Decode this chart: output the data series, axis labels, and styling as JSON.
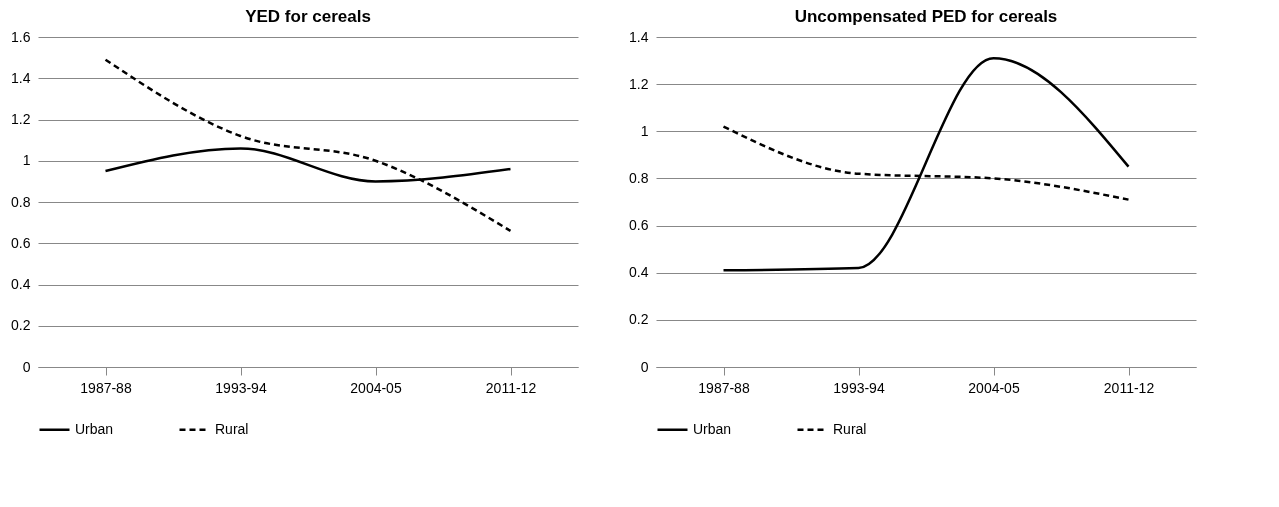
{
  "chart_data": [
    {
      "type": "line",
      "title": "YED for cereals",
      "categories": [
        "1987-88",
        "1993-94",
        "2004-05",
        "2011-12"
      ],
      "ylim": [
        0,
        1.6
      ],
      "yticks": [
        0,
        0.2,
        0.4,
        0.6,
        0.8,
        1,
        1.2,
        1.4,
        1.6
      ],
      "grid": "y",
      "legend": "bottom",
      "series": [
        {
          "name": "Urban",
          "color": "#000000",
          "line_style": "solid",
          "values": [
            0.95,
            1.06,
            0.9,
            0.96
          ]
        },
        {
          "name": "Rural",
          "color": "#000000",
          "line_style": "dashed",
          "values": [
            1.49,
            1.12,
            1.0,
            0.66
          ]
        }
      ]
    },
    {
      "type": "line",
      "title": "Uncompensated PED for cereals",
      "categories": [
        "1987-88",
        "1993-94",
        "2004-05",
        "2011-12"
      ],
      "ylim": [
        0,
        1.4
      ],
      "yticks": [
        0,
        0.2,
        0.4,
        0.6,
        0.8,
        1,
        1.2,
        1.4
      ],
      "grid": "y",
      "legend": "bottom",
      "series": [
        {
          "name": "Urban",
          "color": "#000000",
          "line_style": "solid",
          "values": [
            0.41,
            0.42,
            1.31,
            0.85
          ]
        },
        {
          "name": "Rural",
          "color": "#000000",
          "line_style": "dashed",
          "values": [
            1.02,
            0.82,
            0.8,
            0.71
          ]
        }
      ]
    }
  ]
}
